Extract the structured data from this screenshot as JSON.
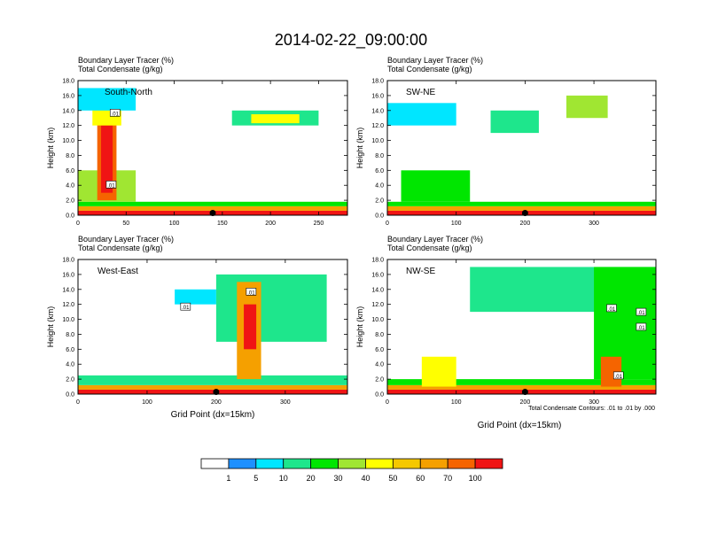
{
  "title": "2014-02-22_09:00:00",
  "palette": [
    "#ffffff",
    "#1e90ff",
    "#00e6ff",
    "#1ee68c",
    "#00e600",
    "#a0e632",
    "#ffff00",
    "#f5c800",
    "#f5a000",
    "#f56400",
    "#f01414"
  ],
  "chart_data": [
    {
      "type": "heatmap",
      "name": "South-North",
      "label": "South-North",
      "header1": "Boundary Layer Tracer   (%)",
      "header2": "Total Condensate   (g/kg)",
      "ylabel": "Height (km)",
      "xlabel": "",
      "xlim": [
        0,
        280
      ],
      "xticks": [
        0,
        50,
        100,
        150,
        200,
        250
      ],
      "ylim": [
        0,
        18
      ],
      "yticks": [
        0,
        2,
        4,
        6,
        8,
        10,
        12,
        14,
        16,
        18
      ],
      "ytick_labels": [
        "0.0",
        "2.0",
        "4.0",
        "6.0",
        "8.0",
        "10.0",
        "12.0",
        "14.0",
        "16.0",
        "18.0"
      ],
      "marker_x": 140,
      "contour_labels": [
        {
          "text": ".01",
          "x": 38,
          "y": 13.7
        },
        {
          "text": ".01",
          "x": 34,
          "y": 4.1
        }
      ],
      "features": [
        {
          "x0": 0,
          "x1": 280,
          "y0": 0,
          "y1": 0.6,
          "v": 10
        },
        {
          "x0": 0,
          "x1": 280,
          "y0": 0.6,
          "y1": 1.2,
          "v": 8
        },
        {
          "x0": 0,
          "x1": 280,
          "y0": 1.2,
          "y1": 1.8,
          "v": 4
        },
        {
          "x0": 0,
          "x1": 60,
          "y0": 1.8,
          "y1": 6,
          "v": 5
        },
        {
          "x0": 20,
          "x1": 40,
          "y0": 2,
          "y1": 13,
          "v": 9
        },
        {
          "x0": 24,
          "x1": 36,
          "y0": 3,
          "y1": 12,
          "v": 10
        },
        {
          "x0": 15,
          "x1": 45,
          "y0": 12,
          "y1": 15,
          "v": 6
        },
        {
          "x0": 0,
          "x1": 60,
          "y0": 14,
          "y1": 17,
          "v": 2
        },
        {
          "x0": 160,
          "x1": 250,
          "y0": 12,
          "y1": 14,
          "v": 3
        },
        {
          "x0": 180,
          "x1": 230,
          "y0": 12.3,
          "y1": 13.5,
          "v": 6
        }
      ]
    },
    {
      "type": "heatmap",
      "name": "SW-NE",
      "label": "SW-NE",
      "header1": "Boundary Layer Tracer   (%)",
      "header2": "Total Condensate   (g/kg)",
      "ylabel": "Height (km)",
      "xlabel": "",
      "xlim": [
        0,
        390
      ],
      "xticks": [
        0,
        100,
        200,
        300
      ],
      "ylim": [
        0,
        18
      ],
      "yticks": [
        0,
        2,
        4,
        6,
        8,
        10,
        12,
        14,
        16,
        18
      ],
      "ytick_labels": [
        "0.0",
        "2.0",
        "4.0",
        "6.0",
        "8.0",
        "10.0",
        "12.0",
        "14.0",
        "16.0",
        "18.0"
      ],
      "marker_x": 200,
      "contour_labels": [],
      "features": [
        {
          "x0": 0,
          "x1": 390,
          "y0": 0,
          "y1": 0.6,
          "v": 10
        },
        {
          "x0": 0,
          "x1": 390,
          "y0": 0.6,
          "y1": 1.2,
          "v": 8
        },
        {
          "x0": 0,
          "x1": 390,
          "y0": 1.2,
          "y1": 1.8,
          "v": 4
        },
        {
          "x0": 20,
          "x1": 120,
          "y0": 1.8,
          "y1": 6,
          "v": 4
        },
        {
          "x0": 0,
          "x1": 100,
          "y0": 12,
          "y1": 15,
          "v": 2
        },
        {
          "x0": 150,
          "x1": 220,
          "y0": 11,
          "y1": 14,
          "v": 3
        },
        {
          "x0": 260,
          "x1": 320,
          "y0": 13,
          "y1": 16,
          "v": 5
        }
      ]
    },
    {
      "type": "heatmap",
      "name": "West-East",
      "label": "West-East",
      "header1": "Boundary Layer Tracer   (%)",
      "header2": "Total Condensate   (g/kg)",
      "ylabel": "Height (km)",
      "xlabel": "Grid Point (dx=15km)",
      "xlim": [
        0,
        390
      ],
      "xticks": [
        0,
        100,
        200,
        300
      ],
      "ylim": [
        0,
        18
      ],
      "yticks": [
        0,
        2,
        4,
        6,
        8,
        10,
        12,
        14,
        16,
        18
      ],
      "ytick_labels": [
        "0.0",
        "2.0",
        "4.0",
        "6.0",
        "8.0",
        "10.0",
        "12.0",
        "14.0",
        "16.0",
        "18.0"
      ],
      "marker_x": 200,
      "contour_labels": [
        {
          "text": ".01",
          "x": 250,
          "y": 13.7
        },
        {
          "text": ".01",
          "x": 155,
          "y": 11.7
        }
      ],
      "features": [
        {
          "x0": 0,
          "x1": 390,
          "y0": 0,
          "y1": 0.6,
          "v": 10
        },
        {
          "x0": 0,
          "x1": 390,
          "y0": 0.6,
          "y1": 1.2,
          "v": 8
        },
        {
          "x0": 0,
          "x1": 390,
          "y0": 1.2,
          "y1": 2.5,
          "v": 3
        },
        {
          "x0": 200,
          "x1": 360,
          "y0": 7,
          "y1": 16,
          "v": 3
        },
        {
          "x0": 230,
          "x1": 265,
          "y0": 2,
          "y1": 15,
          "v": 8
        },
        {
          "x0": 240,
          "x1": 258,
          "y0": 6,
          "y1": 12,
          "v": 10
        },
        {
          "x0": 140,
          "x1": 200,
          "y0": 12,
          "y1": 14,
          "v": 2
        }
      ]
    },
    {
      "type": "heatmap",
      "name": "NW-SE",
      "label": "NW-SE",
      "header1": "Boundary Layer Tracer   (%)",
      "header2": "Total Condensate   (g/kg)",
      "ylabel": "Height (km)",
      "xlabel": "Grid Point (dx=15km)",
      "note": "Total Condensate Contours: .01 to .01 by .000",
      "xlim": [
        0,
        390
      ],
      "xticks": [
        0,
        100,
        200,
        300
      ],
      "ylim": [
        0,
        18
      ],
      "yticks": [
        0,
        2,
        4,
        6,
        8,
        10,
        12,
        14,
        16,
        18
      ],
      "ytick_labels": [
        "0.0",
        "2.0",
        "4.0",
        "6.0",
        "8.0",
        "10.0",
        "12.0",
        "14.0",
        "16.0",
        "18.0"
      ],
      "marker_x": 200,
      "contour_labels": [
        {
          "text": ".01",
          "x": 325,
          "y": 11.5
        },
        {
          "text": ".01",
          "x": 368,
          "y": 11
        },
        {
          "text": ".01",
          "x": 368,
          "y": 9
        },
        {
          "text": ".01",
          "x": 335,
          "y": 2.5
        }
      ],
      "features": [
        {
          "x0": 0,
          "x1": 390,
          "y0": 0,
          "y1": 0.6,
          "v": 10
        },
        {
          "x0": 0,
          "x1": 390,
          "y0": 0.6,
          "y1": 1.2,
          "v": 8
        },
        {
          "x0": 0,
          "x1": 390,
          "y0": 1.2,
          "y1": 2,
          "v": 4
        },
        {
          "x0": 120,
          "x1": 390,
          "y0": 11,
          "y1": 17,
          "v": 3
        },
        {
          "x0": 300,
          "x1": 390,
          "y0": 2,
          "y1": 17,
          "v": 4
        },
        {
          "x0": 50,
          "x1": 100,
          "y0": 1,
          "y1": 5,
          "v": 6
        },
        {
          "x0": 310,
          "x1": 340,
          "y0": 1,
          "y1": 5,
          "v": 9
        }
      ]
    }
  ],
  "colorbar": {
    "labels": [
      "1",
      "5",
      "10",
      "20",
      "30",
      "40",
      "50",
      "60",
      "70",
      "100"
    ]
  }
}
